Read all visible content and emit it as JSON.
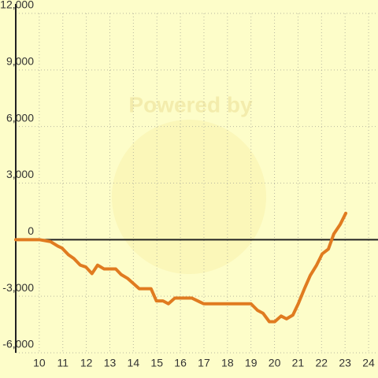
{
  "chart_data": {
    "type": "line",
    "watermark": "Powered by",
    "x": [
      9,
      10,
      10.47,
      10.8,
      10.97,
      11.24,
      11.47,
      11.74,
      11.98,
      12.24,
      12.48,
      12.75,
      13.25,
      13.48,
      13.75,
      14.25,
      14.75,
      14.98,
      15.26,
      15.49,
      15.76,
      16.49,
      16.99,
      17.5,
      19,
      19.28,
      19.51,
      19.78,
      20.01,
      20.28,
      20.51,
      20.78,
      21.01,
      21.29,
      21.52,
      21.79,
      22.03,
      22.29,
      22.52,
      22.79,
      23.03
    ],
    "series": [
      {
        "color": "#e07b20",
        "values": [
          0,
          0,
          -100,
          -350,
          -450,
          -800,
          -1000,
          -1350,
          -1450,
          -1800,
          -1350,
          -1550,
          -1550,
          -1850,
          -2050,
          -2600,
          -2600,
          -3250,
          -3250,
          -3400,
          -3100,
          -3100,
          -3400,
          -3400,
          -3400,
          -3750,
          -3900,
          -4350,
          -4350,
          -4050,
          -4200,
          -4000,
          -3400,
          -2550,
          -1900,
          -1350,
          -750,
          -500,
          300,
          800,
          1400
        ]
      }
    ],
    "xlim": [
      9,
      24.4
    ],
    "ylim": [
      -6000,
      12000
    ],
    "xticks": [
      10,
      11,
      12,
      13,
      14,
      15,
      16,
      17,
      18,
      19,
      20,
      21,
      22,
      23,
      24
    ],
    "yticks": [
      {
        "value": -6000,
        "label": "-6,000"
      },
      {
        "value": -3000,
        "label": "-3,000"
      },
      0,
      {
        "value": 3000,
        "label": "3,000"
      },
      {
        "value": 6000,
        "label": "6,000"
      },
      {
        "value": 9000,
        "label": "9,000"
      },
      {
        "value": 12000,
        "label": "12,000"
      }
    ],
    "grid": true
  }
}
